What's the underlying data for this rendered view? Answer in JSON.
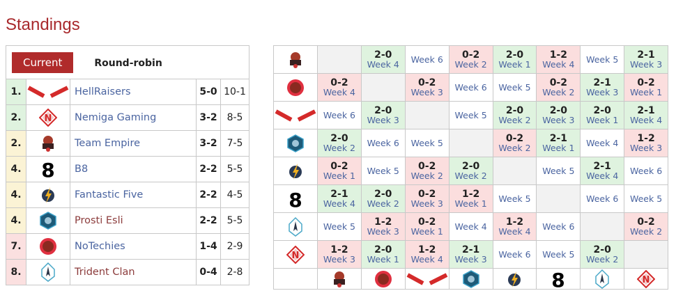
{
  "title": "Standings",
  "tabs": {
    "current": "Current",
    "round_robin": "Round-robin"
  },
  "colors": {
    "win": "#dff3df",
    "loss": "#fbdede",
    "promoted": "#dff3df",
    "middle": "#fbf3d5",
    "relegated": "#fbe0e0",
    "accent": "#b02b2b"
  },
  "teams": {
    "empire": {
      "name": "Team Empire",
      "logo": "empire-logo"
    },
    "notechies": {
      "name": "NoTechies",
      "logo": "notechies-logo"
    },
    "hellraisers": {
      "name": "HellRaisers",
      "logo": "hellraisers-logo"
    },
    "prosti": {
      "name": "Prosti Esli",
      "logo": "prosti-esli-logo"
    },
    "ff": {
      "name": "Fantastic Five",
      "logo": "fantastic-five-logo"
    },
    "b8": {
      "name": "B8",
      "logo": "b8-logo"
    },
    "trident": {
      "name": "Trident Clan",
      "logo": "trident-clan-logo"
    },
    "nemiga": {
      "name": "Nemiga Gaming",
      "logo": "nemiga-logo"
    }
  },
  "standings": [
    {
      "rank": "1.",
      "team": "hellraisers",
      "name": "HellRaisers",
      "score": "5-0",
      "maps": "10-1",
      "zone": "promoted",
      "missing_page": false
    },
    {
      "rank": "2.",
      "team": "nemiga",
      "name": "Nemiga Gaming",
      "score": "3-2",
      "maps": "8-5",
      "zone": "promoted",
      "missing_page": false
    },
    {
      "rank": "2.",
      "team": "empire",
      "name": "Team Empire",
      "score": "3-2",
      "maps": "7-5",
      "zone": "middle",
      "missing_page": false
    },
    {
      "rank": "4.",
      "team": "b8",
      "name": "B8",
      "score": "2-2",
      "maps": "5-5",
      "zone": "middle",
      "missing_page": false
    },
    {
      "rank": "4.",
      "team": "ff",
      "name": "Fantastic Five",
      "score": "2-2",
      "maps": "4-5",
      "zone": "middle",
      "missing_page": false
    },
    {
      "rank": "4.",
      "team": "prosti",
      "name": "Prosti Esli",
      "score": "2-2",
      "maps": "5-5",
      "zone": "middle",
      "missing_page": true
    },
    {
      "rank": "7.",
      "team": "notechies",
      "name": "NoTechies",
      "score": "1-4",
      "maps": "2-9",
      "zone": "relegated",
      "missing_page": false
    },
    {
      "rank": "8.",
      "team": "trident",
      "name": "Trident Clan",
      "score": "0-4",
      "maps": "2-8",
      "zone": "relegated",
      "missing_page": true
    }
  ],
  "grid": {
    "order": [
      "empire",
      "notechies",
      "hellraisers",
      "prosti",
      "ff",
      "b8",
      "trident",
      "nemiga"
    ],
    "rows": [
      [
        [
          "self",
          "",
          ""
        ],
        [
          "win",
          "2-0",
          "Week 4"
        ],
        [
          "none",
          "",
          "Week 6"
        ],
        [
          "loss",
          "0-2",
          "Week 2"
        ],
        [
          "win",
          "2-0",
          "Week 1"
        ],
        [
          "loss",
          "1-2",
          "Week 4"
        ],
        [
          "none",
          "",
          "Week 5"
        ],
        [
          "win",
          "2-1",
          "Week 3"
        ]
      ],
      [
        [
          "loss",
          "0-2",
          "Week 4"
        ],
        [
          "self",
          "",
          ""
        ],
        [
          "loss",
          "0-2",
          "Week 3"
        ],
        [
          "none",
          "",
          "Week 6"
        ],
        [
          "none",
          "",
          "Week 5"
        ],
        [
          "loss",
          "0-2",
          "Week 2"
        ],
        [
          "win",
          "2-1",
          "Week 3"
        ],
        [
          "loss",
          "0-2",
          "Week 1"
        ]
      ],
      [
        [
          "none",
          "",
          "Week 6"
        ],
        [
          "win",
          "2-0",
          "Week 3"
        ],
        [
          "self",
          "",
          ""
        ],
        [
          "none",
          "",
          "Week 5"
        ],
        [
          "win",
          "2-0",
          "Week 2"
        ],
        [
          "win",
          "2-0",
          "Week 3"
        ],
        [
          "win",
          "2-0",
          "Week 1"
        ],
        [
          "win",
          "2-1",
          "Week 4"
        ]
      ],
      [
        [
          "win",
          "2-0",
          "Week 2"
        ],
        [
          "none",
          "",
          "Week 6"
        ],
        [
          "none",
          "",
          "Week 5"
        ],
        [
          "self",
          "",
          ""
        ],
        [
          "loss",
          "0-2",
          "Week 2"
        ],
        [
          "win",
          "2-1",
          "Week 1"
        ],
        [
          "none",
          "",
          "Week 4"
        ],
        [
          "loss",
          "1-2",
          "Week 3"
        ]
      ],
      [
        [
          "loss",
          "0-2",
          "Week 1"
        ],
        [
          "none",
          "",
          "Week 5"
        ],
        [
          "loss",
          "0-2",
          "Week 2"
        ],
        [
          "win",
          "2-0",
          "Week 2"
        ],
        [
          "self",
          "",
          ""
        ],
        [
          "none",
          "",
          "Week 5"
        ],
        [
          "win",
          "2-1",
          "Week 4"
        ],
        [
          "none",
          "",
          "Week 6"
        ]
      ],
      [
        [
          "win",
          "2-1",
          "Week 4"
        ],
        [
          "win",
          "2-0",
          "Week 2"
        ],
        [
          "loss",
          "0-2",
          "Week 3"
        ],
        [
          "loss",
          "1-2",
          "Week 1"
        ],
        [
          "none",
          "",
          "Week 5"
        ],
        [
          "self",
          "",
          ""
        ],
        [
          "none",
          "",
          "Week 6"
        ],
        [
          "none",
          "",
          "Week 5"
        ]
      ],
      [
        [
          "none",
          "",
          "Week 5"
        ],
        [
          "loss",
          "1-2",
          "Week 3"
        ],
        [
          "loss",
          "0-2",
          "Week 1"
        ],
        [
          "none",
          "",
          "Week 4"
        ],
        [
          "loss",
          "1-2",
          "Week 4"
        ],
        [
          "none",
          "",
          "Week 6"
        ],
        [
          "self",
          "",
          ""
        ],
        [
          "loss",
          "0-2",
          "Week 2"
        ]
      ],
      [
        [
          "loss",
          "1-2",
          "Week 3"
        ],
        [
          "win",
          "2-0",
          "Week 1"
        ],
        [
          "loss",
          "1-2",
          "Week 4"
        ],
        [
          "win",
          "2-1",
          "Week 3"
        ],
        [
          "none",
          "",
          "Week 6"
        ],
        [
          "none",
          "",
          "Week 5"
        ],
        [
          "win",
          "2-0",
          "Week 2"
        ],
        [
          "self",
          "",
          ""
        ]
      ]
    ]
  }
}
